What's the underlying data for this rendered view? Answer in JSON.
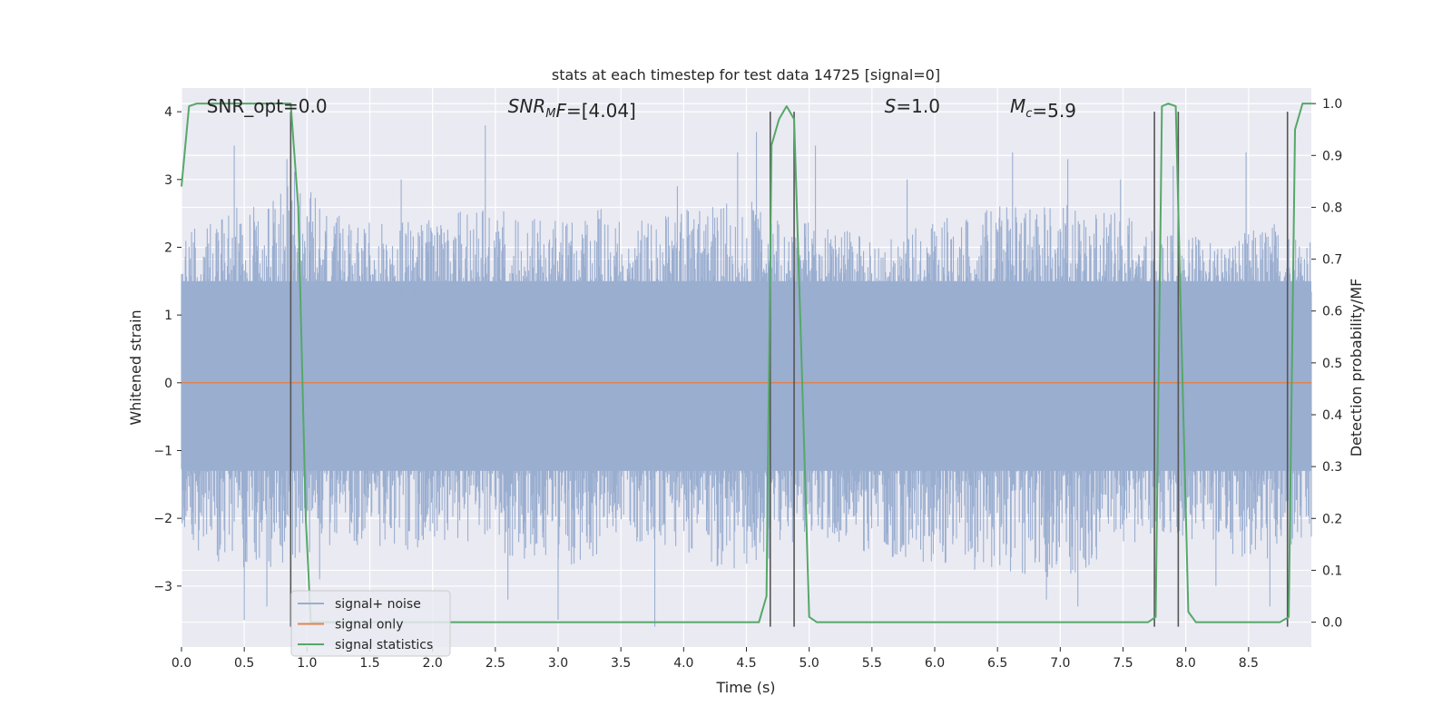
{
  "chart_data": {
    "type": "line",
    "title": "stats at each timestep for test data 14725 [signal=0]",
    "xlabel": "Time (s)",
    "ylabel": "Whitened strain",
    "y2label": "Detection probability/MF",
    "xlim": [
      0,
      9.0
    ],
    "ylim": [
      -3.9,
      4.35
    ],
    "y2lim": [
      -0.048,
      1.03
    ],
    "grid": true,
    "legend_position": "lower-left",
    "x_ticks": [
      "0.0",
      "0.5",
      "1.0",
      "1.5",
      "2.0",
      "2.5",
      "3.0",
      "3.5",
      "4.0",
      "4.5",
      "5.0",
      "5.5",
      "6.0",
      "6.5",
      "7.0",
      "7.5",
      "8.0",
      "8.5"
    ],
    "x_tick_values": [
      0,
      0.5,
      1.0,
      1.5,
      2.0,
      2.5,
      3.0,
      3.5,
      4.0,
      4.5,
      5.0,
      5.5,
      6.0,
      6.5,
      7.0,
      7.5,
      8.0,
      8.5
    ],
    "y_ticks": [
      "4",
      "3",
      "2",
      "1",
      "0",
      "−1",
      "−2",
      "−3"
    ],
    "y_tick_values": [
      4,
      3,
      2,
      1,
      0,
      -1,
      -2,
      -3
    ],
    "y2_ticks": [
      "1.0",
      "0.9",
      "0.8",
      "0.7",
      "0.6",
      "0.5",
      "0.4",
      "0.3",
      "0.2",
      "0.1",
      "0.0"
    ],
    "y2_tick_values": [
      1.0,
      0.9,
      0.8,
      0.7,
      0.6,
      0.5,
      0.4,
      0.3,
      0.2,
      0.1,
      0.0
    ],
    "annotations": [
      {
        "parts": [
          {
            "t": "SNR_opt=0.0"
          }
        ],
        "x": 0.2
      },
      {
        "parts": [
          {
            "t": "SNR",
            "i": true
          },
          {
            "t": "M",
            "i": true,
            "sub": true
          },
          {
            "t": "F",
            "i": true
          },
          {
            "t": "=[4.04]"
          }
        ],
        "x": 2.6
      },
      {
        "parts": [
          {
            "t": "S",
            "i": true
          },
          {
            "t": "=1.0"
          }
        ],
        "x": 5.6
      },
      {
        "parts": [
          {
            "t": "M",
            "i": true
          },
          {
            "t": "c",
            "i": true,
            "sub": true
          },
          {
            "t": "=5.9"
          }
        ],
        "x": 6.6
      }
    ],
    "series": [
      {
        "name": "signal+ noise",
        "color": "#9aaed0",
        "kind": "noise",
        "envelope_top": [
          [
            0,
            2.0
          ],
          [
            0.1,
            2.3
          ],
          [
            0.3,
            2.4
          ],
          [
            0.45,
            2.6
          ],
          [
            0.7,
            2.7
          ],
          [
            0.85,
            3.3
          ],
          [
            1.2,
            2.5
          ],
          [
            1.5,
            2.4
          ],
          [
            2.0,
            2.5
          ],
          [
            2.4,
            2.6
          ],
          [
            2.9,
            2.4
          ],
          [
            3.3,
            2.6
          ],
          [
            3.7,
            2.4
          ],
          [
            4.1,
            2.6
          ],
          [
            4.5,
            2.7
          ],
          [
            4.8,
            2.5
          ],
          [
            5.2,
            2.3
          ],
          [
            5.6,
            2.1
          ],
          [
            6.0,
            2.4
          ],
          [
            6.5,
            2.6
          ],
          [
            7.0,
            2.7
          ],
          [
            7.5,
            2.5
          ],
          [
            7.9,
            2.2
          ],
          [
            8.3,
            2.1
          ],
          [
            8.7,
            2.4
          ],
          [
            9.0,
            2.2
          ]
        ],
        "envelope_bottom": [
          [
            0,
            -2.3
          ],
          [
            0.3,
            -2.7
          ],
          [
            0.6,
            -2.8
          ],
          [
            0.9,
            -2.6
          ],
          [
            1.3,
            -2.4
          ],
          [
            1.8,
            -2.5
          ],
          [
            2.2,
            -2.3
          ],
          [
            2.7,
            -2.6
          ],
          [
            3.1,
            -2.7
          ],
          [
            3.5,
            -2.4
          ],
          [
            4.0,
            -2.5
          ],
          [
            4.4,
            -2.9
          ],
          [
            4.7,
            -2.6
          ],
          [
            5.0,
            -2.3
          ],
          [
            5.4,
            -2.5
          ],
          [
            6.0,
            -2.7
          ],
          [
            6.5,
            -2.8
          ],
          [
            7.0,
            -2.9
          ],
          [
            7.4,
            -2.6
          ],
          [
            7.8,
            -2.3
          ],
          [
            8.2,
            -2.4
          ],
          [
            8.6,
            -2.7
          ],
          [
            9.0,
            -2.5
          ]
        ],
        "peaks": [
          [
            0.42,
            3.5
          ],
          [
            0.84,
            3.3
          ],
          [
            0.5,
            -3.5
          ],
          [
            0.68,
            -3.3
          ],
          [
            2.42,
            3.8
          ],
          [
            2.6,
            -3.2
          ],
          [
            3.0,
            -3.5
          ],
          [
            3.77,
            -3.6
          ],
          [
            4.43,
            3.4
          ],
          [
            4.58,
            3.7
          ],
          [
            5.05,
            3.5
          ],
          [
            6.62,
            3.4
          ],
          [
            7.06,
            3.3
          ],
          [
            7.48,
            3.0
          ],
          [
            7.9,
            3.2
          ],
          [
            8.48,
            3.4
          ],
          [
            6.89,
            -3.2
          ],
          [
            7.14,
            -3.3
          ],
          [
            8.24,
            -3.0
          ],
          [
            8.67,
            -3.3
          ],
          [
            1.75,
            3.0
          ],
          [
            5.78,
            3.0
          ],
          [
            3.95,
            2.9
          ],
          [
            1.1,
            -2.9
          ]
        ]
      },
      {
        "name": "signal only",
        "color": "#dd8452",
        "kind": "line",
        "x": [
          0,
          9.0
        ],
        "y": [
          0,
          0
        ]
      },
      {
        "name": "signal statistics",
        "color": "#55a868",
        "kind": "line",
        "axis": "y2",
        "x": [
          0,
          0.06,
          0.12,
          0.18,
          0.5,
          0.8,
          0.87,
          0.93,
          0.99,
          1.03,
          1.1,
          4.6,
          4.66,
          4.7,
          4.76,
          4.82,
          4.88,
          4.94,
          5.0,
          5.06,
          5.12,
          7.7,
          7.76,
          7.81,
          7.86,
          7.92,
          7.96,
          8.02,
          8.08,
          8.75,
          8.82,
          8.87,
          8.93,
          9.0
        ],
        "y": [
          0.84,
          0.995,
          1.0,
          1.0,
          1.0,
          1.0,
          1.0,
          0.8,
          0.2,
          0.0,
          0.0,
          0.0,
          0.05,
          0.92,
          0.97,
          0.995,
          0.97,
          0.5,
          0.01,
          0.0,
          0.0,
          0.0,
          0.01,
          0.995,
          1.0,
          0.995,
          0.6,
          0.02,
          0.0,
          0.0,
          0.01,
          0.95,
          1.0,
          1.0
        ]
      }
    ],
    "vertical_lines": [
      {
        "x": 0.87,
        "y_top": 4.0,
        "y_bottom": -3.6
      },
      {
        "x": 4.69,
        "y_top": 4.0,
        "y_bottom": -3.6
      },
      {
        "x": 4.88,
        "y_top": 4.0,
        "y_bottom": -3.6
      },
      {
        "x": 7.75,
        "y_top": 4.0,
        "y_bottom": -3.6
      },
      {
        "x": 7.94,
        "y_top": 4.0,
        "y_bottom": -3.6
      },
      {
        "x": 8.81,
        "y_top": 4.0,
        "y_bottom": -3.6
      }
    ],
    "legend": [
      {
        "label": "signal+ noise",
        "color": "#9aaed0"
      },
      {
        "label": "signal only",
        "color": "#dd8452"
      },
      {
        "label": "signal statistics",
        "color": "#55a868"
      }
    ],
    "colors": {
      "plot_background": "#eaeaf2",
      "grid": "#ffffff",
      "vline": "#555555"
    }
  }
}
